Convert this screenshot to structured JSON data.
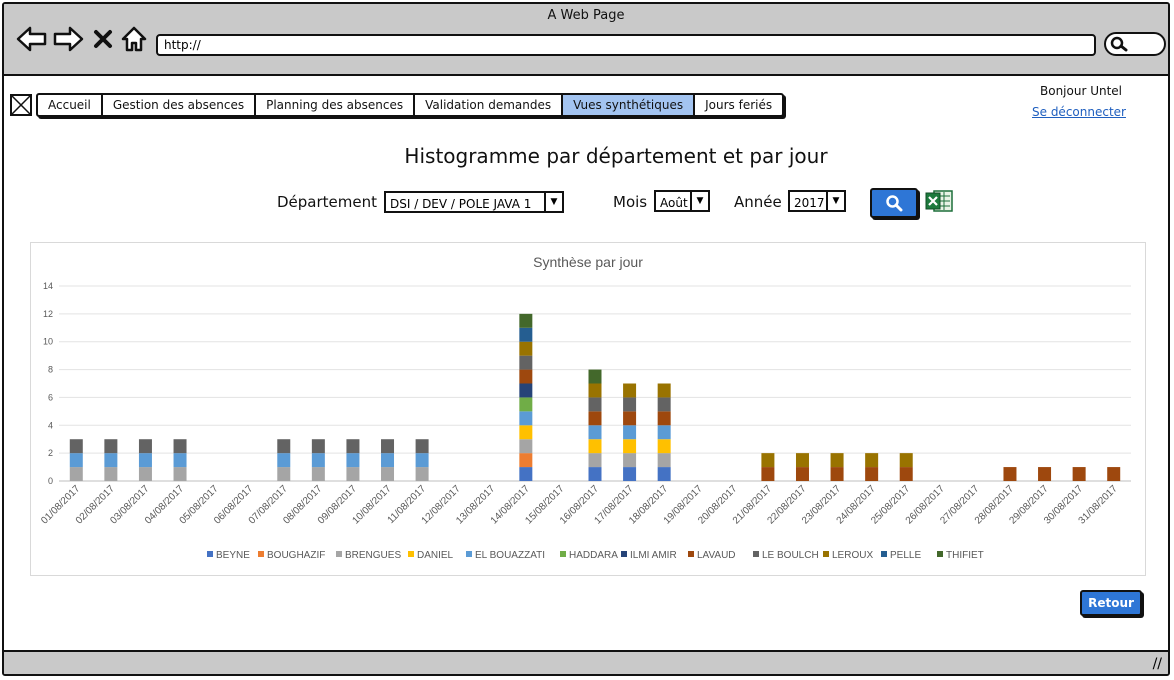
{
  "window": {
    "title": "A Web Page"
  },
  "browser": {
    "url": "http://"
  },
  "nav": {
    "tabs": [
      {
        "label": "Accueil",
        "active": false
      },
      {
        "label": "Gestion des absences",
        "active": false
      },
      {
        "label": "Planning des absences",
        "active": false
      },
      {
        "label": "Validation demandes",
        "active": false
      },
      {
        "label": "Vues synthétiques",
        "active": true
      },
      {
        "label": "Jours feriés",
        "active": false
      }
    ]
  },
  "user": {
    "greeting": "Bonjour Untel",
    "logout": "Se déconnecter"
  },
  "page": {
    "title": "Histogramme par département et par jour"
  },
  "filters": {
    "department_label": "Département",
    "department_value": "DSI / DEV / POLE JAVA 1",
    "month_label": "Mois",
    "month_value": "Août",
    "year_label": "Année",
    "year_value": "2017"
  },
  "actions": {
    "search_icon": "magnifier-icon",
    "excel_icon": "excel-icon",
    "back_label": "Retour"
  },
  "chart_data": {
    "type": "bar",
    "stacked": true,
    "title": "Synthèse par jour",
    "ylim": [
      0,
      14
    ],
    "yticks": [
      "0",
      "2",
      "4",
      "6",
      "8",
      "10",
      "12",
      "14"
    ],
    "grid": true,
    "legend_position": "bottom",
    "categories": [
      "01/08/2017",
      "02/08/2017",
      "03/08/2017",
      "04/08/2017",
      "05/08/2017",
      "06/08/2017",
      "07/08/2017",
      "08/08/2017",
      "09/08/2017",
      "10/08/2017",
      "11/08/2017",
      "12/08/2017",
      "13/08/2017",
      "14/08/2017",
      "15/08/2017",
      "16/08/2017",
      "17/08/2017",
      "18/08/2017",
      "19/08/2017",
      "20/08/2017",
      "21/08/2017",
      "22/08/2017",
      "23/08/2017",
      "24/08/2017",
      "25/08/2017",
      "26/08/2017",
      "27/08/2017",
      "28/08/2017",
      "29/08/2017",
      "30/08/2017",
      "31/08/2017"
    ],
    "series": [
      {
        "name": "BEYNE",
        "color": "#4472c4",
        "values": [
          0,
          0,
          0,
          0,
          0,
          0,
          0,
          0,
          0,
          0,
          0,
          0,
          0,
          1,
          0,
          1,
          1,
          1,
          0,
          0,
          0,
          0,
          0,
          0,
          0,
          0,
          0,
          0,
          0,
          0,
          0
        ]
      },
      {
        "name": "BOUGHAZIF",
        "color": "#ed7d31",
        "values": [
          0,
          0,
          0,
          0,
          0,
          0,
          0,
          0,
          0,
          0,
          0,
          0,
          0,
          1,
          0,
          0,
          0,
          0,
          0,
          0,
          0,
          0,
          0,
          0,
          0,
          0,
          0,
          0,
          0,
          0,
          0
        ]
      },
      {
        "name": "BRENGUES",
        "color": "#a5a5a5",
        "values": [
          1,
          1,
          1,
          1,
          0,
          0,
          1,
          1,
          1,
          1,
          1,
          0,
          0,
          1,
          0,
          1,
          1,
          1,
          0,
          0,
          0,
          0,
          0,
          0,
          0,
          0,
          0,
          0,
          0,
          0,
          0
        ]
      },
      {
        "name": "DANIEL",
        "color": "#ffc000",
        "values": [
          0,
          0,
          0,
          0,
          0,
          0,
          0,
          0,
          0,
          0,
          0,
          0,
          0,
          1,
          0,
          1,
          1,
          1,
          0,
          0,
          0,
          0,
          0,
          0,
          0,
          0,
          0,
          0,
          0,
          0,
          0
        ]
      },
      {
        "name": "EL BOUAZZATI",
        "color": "#5b9bd5",
        "values": [
          1,
          1,
          1,
          1,
          0,
          0,
          1,
          1,
          1,
          1,
          1,
          0,
          0,
          1,
          0,
          1,
          1,
          1,
          0,
          0,
          0,
          0,
          0,
          0,
          0,
          0,
          0,
          0,
          0,
          0,
          0
        ]
      },
      {
        "name": "HADDARA",
        "color": "#70ad47",
        "values": [
          0,
          0,
          0,
          0,
          0,
          0,
          0,
          0,
          0,
          0,
          0,
          0,
          0,
          1,
          0,
          0,
          0,
          0,
          0,
          0,
          0,
          0,
          0,
          0,
          0,
          0,
          0,
          0,
          0,
          0,
          0
        ]
      },
      {
        "name": "ILMI AMIR",
        "color": "#264478",
        "values": [
          0,
          0,
          0,
          0,
          0,
          0,
          0,
          0,
          0,
          0,
          0,
          0,
          0,
          1,
          0,
          0,
          0,
          0,
          0,
          0,
          0,
          0,
          0,
          0,
          0,
          0,
          0,
          0,
          0,
          0,
          0
        ]
      },
      {
        "name": "LAVAUD",
        "color": "#9e480e",
        "values": [
          0,
          0,
          0,
          0,
          0,
          0,
          0,
          0,
          0,
          0,
          0,
          0,
          0,
          1,
          0,
          1,
          1,
          1,
          0,
          0,
          1,
          1,
          1,
          1,
          1,
          0,
          0,
          1,
          1,
          1,
          1
        ]
      },
      {
        "name": "LE BOULCH",
        "color": "#636363",
        "values": [
          1,
          1,
          1,
          1,
          0,
          0,
          1,
          1,
          1,
          1,
          1,
          0,
          0,
          1,
          0,
          1,
          1,
          1,
          0,
          0,
          0,
          0,
          0,
          0,
          0,
          0,
          0,
          0,
          0,
          0,
          0
        ]
      },
      {
        "name": "LEROUX",
        "color": "#997300",
        "values": [
          0,
          0,
          0,
          0,
          0,
          0,
          0,
          0,
          0,
          0,
          0,
          0,
          0,
          1,
          0,
          1,
          1,
          1,
          0,
          0,
          1,
          1,
          1,
          1,
          1,
          0,
          0,
          0,
          0,
          0,
          0
        ]
      },
      {
        "name": "PELLE",
        "color": "#255e91",
        "values": [
          0,
          0,
          0,
          0,
          0,
          0,
          0,
          0,
          0,
          0,
          0,
          0,
          0,
          1,
          0,
          0,
          0,
          0,
          0,
          0,
          0,
          0,
          0,
          0,
          0,
          0,
          0,
          0,
          0,
          0,
          0
        ]
      },
      {
        "name": "THIFIET",
        "color": "#43682b",
        "values": [
          0,
          0,
          0,
          0,
          0,
          0,
          0,
          0,
          0,
          0,
          0,
          0,
          0,
          1,
          0,
          1,
          0,
          0,
          0,
          0,
          0,
          0,
          0,
          0,
          0,
          0,
          0,
          0,
          0,
          0,
          0
        ]
      }
    ]
  }
}
